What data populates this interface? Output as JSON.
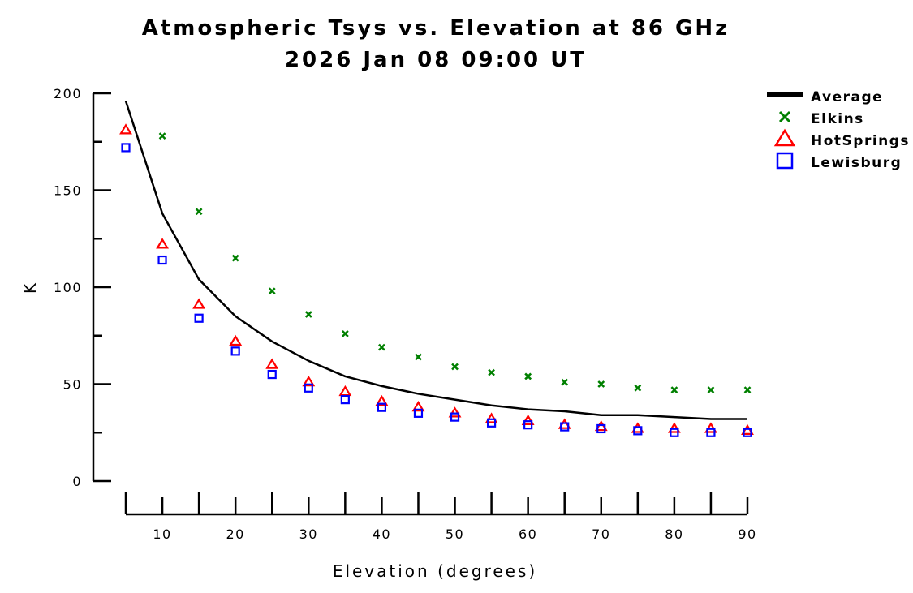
{
  "chart_data": {
    "type": "scatter",
    "title": "Atmospheric Tsys vs. Elevation at 86 GHz",
    "subtitle": "2026 Jan 08 09:00 UT",
    "xlabel": "Elevation (degrees)",
    "ylabel": "K",
    "xlim": [
      5,
      90
    ],
    "ylim": [
      0,
      200
    ],
    "xticks": [
      10,
      20,
      30,
      40,
      50,
      60,
      70,
      80,
      90
    ],
    "yticks": [
      0,
      50,
      100,
      150,
      200
    ],
    "grid": false,
    "legend_position": "top-right",
    "x": [
      5,
      10,
      15,
      20,
      25,
      30,
      35,
      40,
      45,
      50,
      55,
      60,
      65,
      70,
      75,
      80,
      85,
      90
    ],
    "series": [
      {
        "name": "Average",
        "style": "line",
        "color": "#000000",
        "values": [
          196,
          138,
          104,
          85,
          72,
          62,
          54,
          49,
          45,
          42,
          39,
          37,
          36,
          34,
          34,
          33,
          32,
          32
        ]
      },
      {
        "name": "Elkins",
        "style": "x",
        "color": "#008000",
        "values": [
          null,
          178,
          139,
          115,
          98,
          86,
          76,
          69,
          64,
          59,
          56,
          54,
          51,
          50,
          48,
          47,
          47,
          47
        ]
      },
      {
        "name": "HotSprings",
        "style": "triangle",
        "color": "#ff0000",
        "values": [
          181,
          122,
          91,
          72,
          60,
          51,
          46,
          41,
          38,
          35,
          32,
          31,
          29,
          28,
          27,
          27,
          27,
          26
        ]
      },
      {
        "name": "Lewisburg",
        "style": "square",
        "color": "#0000ff",
        "values": [
          172,
          114,
          84,
          67,
          55,
          48,
          42,
          38,
          35,
          33,
          30,
          29,
          28,
          27,
          26,
          25,
          25,
          25
        ]
      }
    ]
  }
}
